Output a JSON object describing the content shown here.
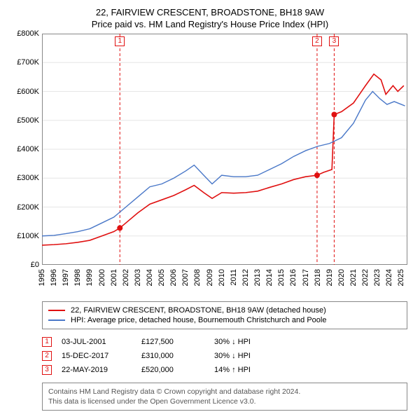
{
  "titles": {
    "line1": "22, FAIRVIEW CRESCENT, BROADSTONE, BH18 9AW",
    "line2": "Price paid vs. HM Land Registry's House Price Index (HPI)"
  },
  "chart": {
    "type": "line",
    "background_color": "#ffffff",
    "axis_color": "#888888",
    "grid_color": "#e6e6e6",
    "x": {
      "min": 1995,
      "max": 2025.5,
      "ticks": [
        1995,
        1996,
        1997,
        1998,
        1999,
        2000,
        2001,
        2002,
        2003,
        2004,
        2005,
        2006,
        2007,
        2008,
        2009,
        2010,
        2011,
        2012,
        2013,
        2014,
        2015,
        2016,
        2017,
        2018,
        2019,
        2020,
        2021,
        2022,
        2023,
        2024,
        2025
      ],
      "tick_labels": [
        "1995",
        "1996",
        "1997",
        "1998",
        "1999",
        "2000",
        "2001",
        "2002",
        "2003",
        "2004",
        "2005",
        "2006",
        "2007",
        "2008",
        "2009",
        "2010",
        "2011",
        "2012",
        "2013",
        "2014",
        "2015",
        "2016",
        "2017",
        "2018",
        "2019",
        "2020",
        "2021",
        "2022",
        "2023",
        "2024",
        "2025"
      ],
      "label_fontsize": 11,
      "rotation": -90
    },
    "y": {
      "min": 0,
      "max": 800000,
      "ticks": [
        0,
        100000,
        200000,
        300000,
        400000,
        500000,
        600000,
        700000,
        800000
      ],
      "tick_labels": [
        "£0",
        "£100K",
        "£200K",
        "£300K",
        "£400K",
        "£500K",
        "£600K",
        "£700K",
        "£800K"
      ],
      "label_fontsize": 11
    },
    "series": [
      {
        "name": "price_paid",
        "label": "22, FAIRVIEW CRESCENT, BROADSTONE, BH18 9AW (detached house)",
        "color": "#e01010",
        "line_width": 1.6,
        "points": [
          [
            1995.0,
            68000
          ],
          [
            1996.0,
            70000
          ],
          [
            1997.0,
            73000
          ],
          [
            1998.0,
            78000
          ],
          [
            1999.0,
            85000
          ],
          [
            2000.0,
            100000
          ],
          [
            2001.0,
            115000
          ],
          [
            2001.5,
            127500
          ],
          [
            2002.0,
            145000
          ],
          [
            2003.0,
            180000
          ],
          [
            2004.0,
            210000
          ],
          [
            2005.0,
            225000
          ],
          [
            2006.0,
            240000
          ],
          [
            2007.0,
            260000
          ],
          [
            2007.7,
            275000
          ],
          [
            2008.5,
            250000
          ],
          [
            2009.2,
            230000
          ],
          [
            2010.0,
            250000
          ],
          [
            2011.0,
            248000
          ],
          [
            2012.0,
            250000
          ],
          [
            2013.0,
            255000
          ],
          [
            2014.0,
            268000
          ],
          [
            2015.0,
            280000
          ],
          [
            2016.0,
            295000
          ],
          [
            2017.0,
            305000
          ],
          [
            2017.96,
            310000
          ],
          [
            2018.5,
            320000
          ],
          [
            2019.2,
            330000
          ],
          [
            2019.39,
            520000
          ],
          [
            2020.0,
            530000
          ],
          [
            2021.0,
            560000
          ],
          [
            2022.0,
            620000
          ],
          [
            2022.7,
            660000
          ],
          [
            2023.3,
            640000
          ],
          [
            2023.7,
            590000
          ],
          [
            2024.3,
            620000
          ],
          [
            2024.7,
            600000
          ],
          [
            2025.2,
            620000
          ]
        ],
        "markers": [
          {
            "x": 2001.5,
            "y": 127500
          },
          {
            "x": 2017.96,
            "y": 310000
          },
          {
            "x": 2019.39,
            "y": 520000
          }
        ],
        "marker_radius": 4
      },
      {
        "name": "hpi",
        "label": "HPI: Average price, detached house, Bournemouth Christchurch and Poole",
        "color": "#4a78c8",
        "line_width": 1.4,
        "points": [
          [
            1995.0,
            100000
          ],
          [
            1996.0,
            102000
          ],
          [
            1997.0,
            108000
          ],
          [
            1998.0,
            115000
          ],
          [
            1999.0,
            125000
          ],
          [
            2000.0,
            145000
          ],
          [
            2001.0,
            165000
          ],
          [
            2002.0,
            200000
          ],
          [
            2003.0,
            235000
          ],
          [
            2004.0,
            270000
          ],
          [
            2005.0,
            280000
          ],
          [
            2006.0,
            300000
          ],
          [
            2007.0,
            325000
          ],
          [
            2007.7,
            345000
          ],
          [
            2008.5,
            310000
          ],
          [
            2009.2,
            280000
          ],
          [
            2010.0,
            310000
          ],
          [
            2011.0,
            305000
          ],
          [
            2012.0,
            305000
          ],
          [
            2013.0,
            310000
          ],
          [
            2014.0,
            330000
          ],
          [
            2015.0,
            350000
          ],
          [
            2016.0,
            375000
          ],
          [
            2017.0,
            395000
          ],
          [
            2018.0,
            410000
          ],
          [
            2019.0,
            420000
          ],
          [
            2020.0,
            440000
          ],
          [
            2021.0,
            490000
          ],
          [
            2022.0,
            570000
          ],
          [
            2022.6,
            600000
          ],
          [
            2023.2,
            575000
          ],
          [
            2023.8,
            555000
          ],
          [
            2024.4,
            565000
          ],
          [
            2025.0,
            555000
          ],
          [
            2025.3,
            550000
          ]
        ]
      }
    ],
    "top_markers": [
      {
        "num": "1",
        "x": 2001.5,
        "color": "#e01010"
      },
      {
        "num": "2",
        "x": 2017.96,
        "color": "#e01010"
      },
      {
        "num": "3",
        "x": 2019.39,
        "color": "#e01010"
      }
    ]
  },
  "legend": {
    "border_color": "#888888",
    "items": [
      {
        "color": "#e01010",
        "label": "22, FAIRVIEW CRESCENT, BROADSTONE, BH18 9AW (detached house)"
      },
      {
        "color": "#4a78c8",
        "label": "HPI: Average price, detached house, Bournemouth Christchurch and Poole"
      }
    ]
  },
  "events": [
    {
      "num": "1",
      "color": "#e01010",
      "date": "03-JUL-2001",
      "price": "£127,500",
      "delta": "30% ↓ HPI"
    },
    {
      "num": "2",
      "color": "#e01010",
      "date": "15-DEC-2017",
      "price": "£310,000",
      "delta": "30% ↓ HPI"
    },
    {
      "num": "3",
      "color": "#e01010",
      "date": "22-MAY-2019",
      "price": "£520,000",
      "delta": "14% ↑ HPI"
    }
  ],
  "footer": {
    "line1": "Contains HM Land Registry data © Crown copyright and database right 2024.",
    "line2": "This data is licensed under the Open Government Licence v3.0."
  }
}
